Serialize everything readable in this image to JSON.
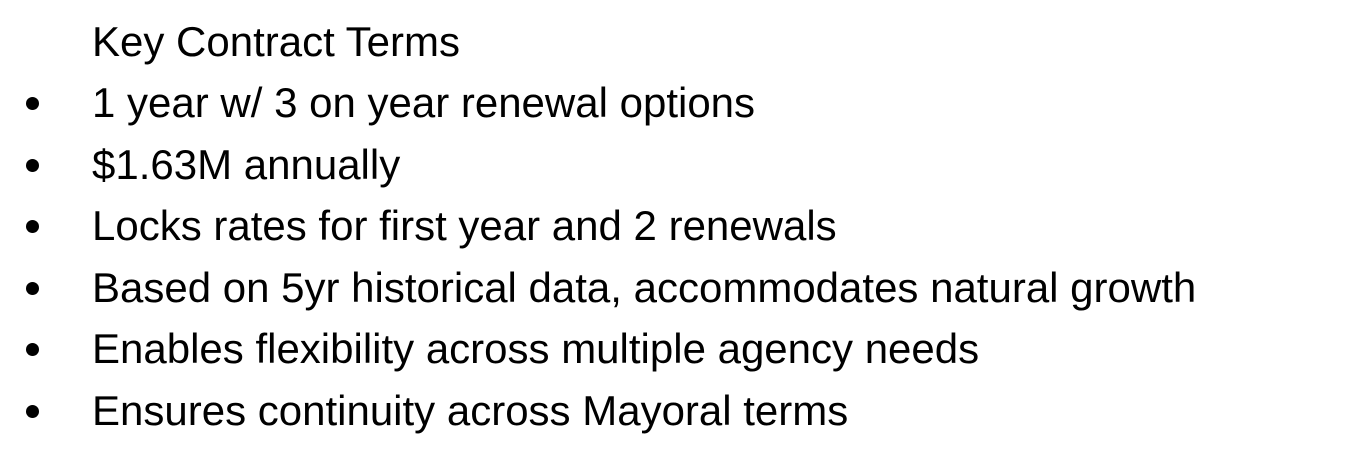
{
  "heading": "Key Contract Terms",
  "items": [
    "1 year w/ 3 on year renewal options",
    "$1.63M annually",
    "Locks rates for first year and 2 renewals",
    "Based on 5yr historical data, accommodates natural growth",
    "Enables flexibility across multiple agency needs",
    "Ensures continuity across Mayoral terms"
  ]
}
